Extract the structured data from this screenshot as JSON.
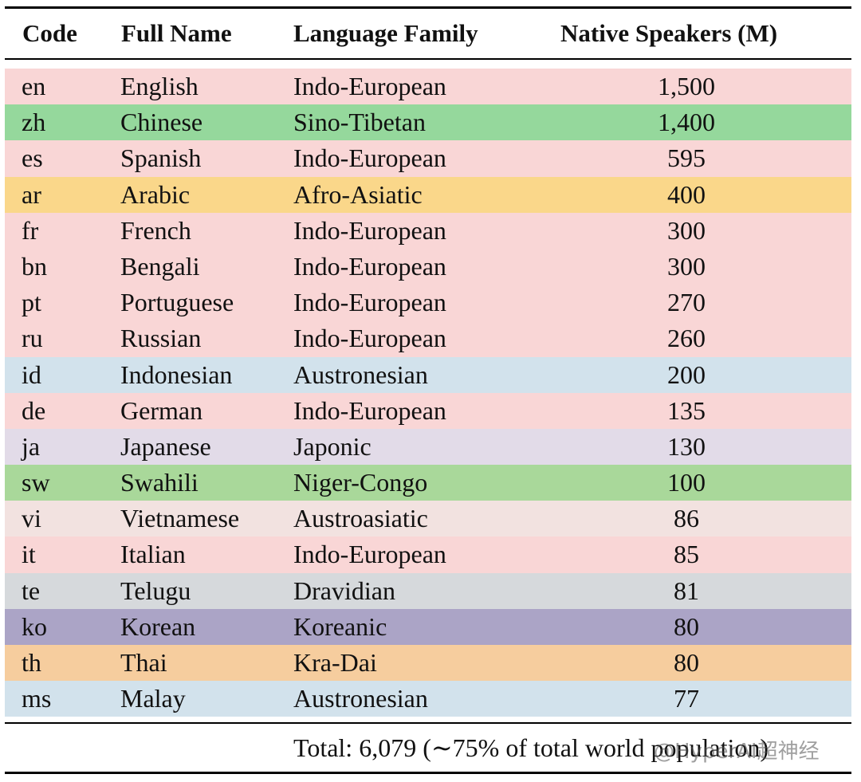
{
  "table": {
    "headers": {
      "code": "Code",
      "name": "Full Name",
      "family": "Language Family",
      "speakers": "Native Speakers (M)"
    },
    "rows": [
      {
        "code": "en",
        "name": "English",
        "family": "Indo-European",
        "speakers": "1,500",
        "color": "#f9d6d6"
      },
      {
        "code": "zh",
        "name": "Chinese",
        "family": "Sino-Tibetan",
        "speakers": "1,400",
        "color": "#95d89c"
      },
      {
        "code": "es",
        "name": "Spanish",
        "family": "Indo-European",
        "speakers": "595",
        "color": "#f9d6d6"
      },
      {
        "code": "ar",
        "name": "Arabic",
        "family": "Afro-Asiatic",
        "speakers": "400",
        "color": "#fad78a"
      },
      {
        "code": "fr",
        "name": "French",
        "family": "Indo-European",
        "speakers": "300",
        "color": "#f9d6d6"
      },
      {
        "code": "bn",
        "name": "Bengali",
        "family": "Indo-European",
        "speakers": "300",
        "color": "#f9d6d6"
      },
      {
        "code": "pt",
        "name": "Portuguese",
        "family": "Indo-European",
        "speakers": "270",
        "color": "#f9d6d6"
      },
      {
        "code": "ru",
        "name": "Russian",
        "family": "Indo-European",
        "speakers": "260",
        "color": "#f9d6d6"
      },
      {
        "code": "id",
        "name": "Indonesian",
        "family": "Austronesian",
        "speakers": "200",
        "color": "#d2e2ec"
      },
      {
        "code": "de",
        "name": "German",
        "family": "Indo-European",
        "speakers": "135",
        "color": "#f9d6d6"
      },
      {
        "code": "ja",
        "name": "Japanese",
        "family": "Japonic",
        "speakers": "130",
        "color": "#e2dbe8"
      },
      {
        "code": "sw",
        "name": "Swahili",
        "family": "Niger-Congo",
        "speakers": "100",
        "color": "#a9d89a"
      },
      {
        "code": "vi",
        "name": "Vietnamese",
        "family": "Austroasiatic",
        "speakers": "86",
        "color": "#f2e2e0"
      },
      {
        "code": "it",
        "name": "Italian",
        "family": "Indo-European",
        "speakers": "85",
        "color": "#f9d6d6"
      },
      {
        "code": "te",
        "name": "Telugu",
        "family": "Dravidian",
        "speakers": "81",
        "color": "#d6d9dc"
      },
      {
        "code": "ko",
        "name": "Korean",
        "family": "Koreanic",
        "speakers": "80",
        "color": "#aba4c6"
      },
      {
        "code": "th",
        "name": "Thai",
        "family": "Kra-Dai",
        "speakers": "80",
        "color": "#f6cd9e"
      },
      {
        "code": "ms",
        "name": "Malay",
        "family": "Austronesian",
        "speakers": "77",
        "color": "#d2e2ec"
      }
    ],
    "total": "Total: 6,079 (∼75% of total world population)"
  },
  "watermark": "@HyperAI超神经"
}
